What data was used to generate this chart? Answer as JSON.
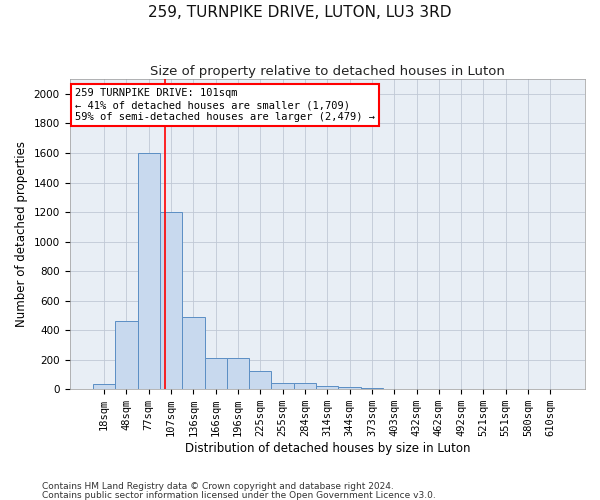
{
  "title": "259, TURNPIKE DRIVE, LUTON, LU3 3RD",
  "subtitle": "Size of property relative to detached houses in Luton",
  "xlabel": "Distribution of detached houses by size in Luton",
  "ylabel": "Number of detached properties",
  "bar_color": "#c8d9ee",
  "bar_edge_color": "#5b8ec4",
  "categories": [
    "18sqm",
    "48sqm",
    "77sqm",
    "107sqm",
    "136sqm",
    "166sqm",
    "196sqm",
    "225sqm",
    "255sqm",
    "284sqm",
    "314sqm",
    "344sqm",
    "373sqm",
    "403sqm",
    "432sqm",
    "462sqm",
    "492sqm",
    "521sqm",
    "551sqm",
    "580sqm",
    "610sqm"
  ],
  "values": [
    35,
    460,
    1600,
    1200,
    490,
    210,
    210,
    125,
    45,
    40,
    25,
    15,
    10,
    0,
    0,
    0,
    0,
    0,
    0,
    0,
    0
  ],
  "ylim": [
    0,
    2100
  ],
  "yticks": [
    0,
    200,
    400,
    600,
    800,
    1000,
    1200,
    1400,
    1600,
    1800,
    2000
  ],
  "vline_x": 2.73,
  "annotation_line1": "259 TURNPIKE DRIVE: 101sqm",
  "annotation_line2": "← 41% of detached houses are smaller (1,709)",
  "annotation_line3": "59% of semi-detached houses are larger (2,479) →",
  "footer1": "Contains HM Land Registry data © Crown copyright and database right 2024.",
  "footer2": "Contains public sector information licensed under the Open Government Licence v3.0.",
  "bg_color": "#ffffff",
  "plot_bg_color": "#e8eef5",
  "grid_color": "#c0c8d5",
  "title_fontsize": 11,
  "subtitle_fontsize": 9.5,
  "axis_label_fontsize": 8.5,
  "tick_fontsize": 7.5,
  "annotation_fontsize": 7.5,
  "footer_fontsize": 6.5
}
